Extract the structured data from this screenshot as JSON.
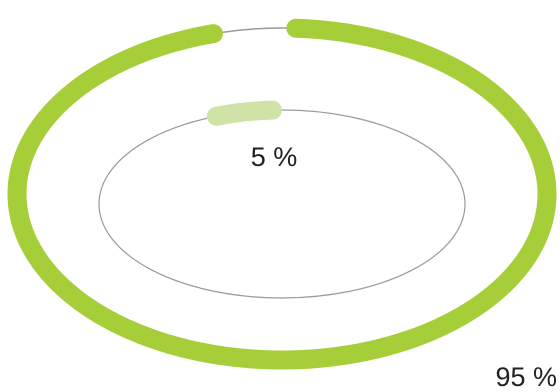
{
  "chart_data": {
    "type": "pie",
    "title": "",
    "series": [
      {
        "values": [
          95
        ],
        "label": "95 %",
        "color": "#a6ce39"
      },
      {
        "values": [
          5
        ],
        "label": "5 %",
        "color": "#cfe3a6"
      }
    ],
    "track_color": "#9a9a9a"
  }
}
